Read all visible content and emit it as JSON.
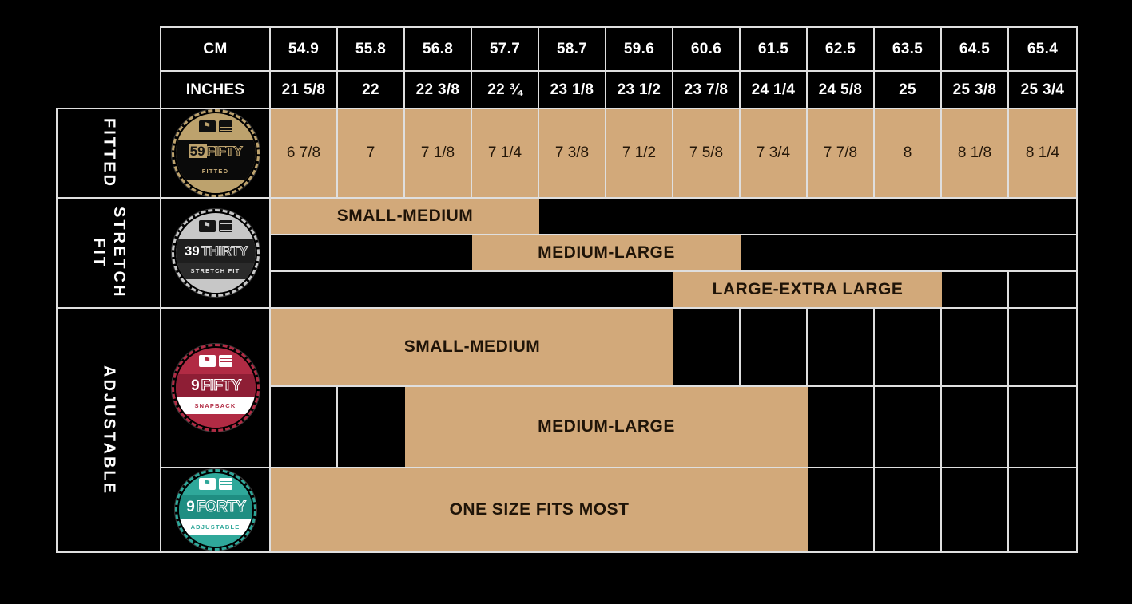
{
  "title": "New Era cap size chart",
  "colors": {
    "tan": "#d2a97a",
    "grid_line": "#dfdfdf",
    "background": "#000000",
    "badge_gold": "#bda26d",
    "badge_silver": "#c7c7c7",
    "badge_crimson": "#b12b44",
    "badge_teal": "#2fa89a"
  },
  "header": {
    "cm_label": "CM",
    "inches_label": "INCHES",
    "cm": [
      "54.9",
      "55.8",
      "56.8",
      "57.7",
      "58.7",
      "59.6",
      "60.6",
      "61.5",
      "62.5",
      "63.5",
      "64.5",
      "65.4"
    ],
    "inches": [
      "21 5/8",
      "22",
      "22 3/8",
      "22 ¾",
      "23 1/8",
      "23 1/2",
      "23 7/8",
      "24 1/4",
      "24 5/8",
      "25",
      "25 3/8",
      "25 3/4"
    ]
  },
  "sections": {
    "fitted": {
      "label": "FITTED",
      "badge": {
        "prefix": "59",
        "suffix": "FIFTY",
        "sub": "FITTED"
      },
      "sizes": [
        "6 7/8",
        "7",
        "7 1/8",
        "7 1/4",
        "7 3/8",
        "7 1/2",
        "7 5/8",
        "7 3/4",
        "7 7/8",
        "8",
        "8 1/8",
        "8 1/4"
      ]
    },
    "stretch": {
      "label": "STRETCH FIT",
      "badge": {
        "prefix": "39",
        "suffix": "THIRTY",
        "sub": "STRETCH FIT"
      },
      "bars": [
        {
          "label": "SMALL-MEDIUM",
          "start_col": 1,
          "end_col": 4
        },
        {
          "label": "MEDIUM-LARGE",
          "start_col": 4,
          "end_col": 7
        },
        {
          "label": "LARGE-EXTRA LARGE",
          "start_col": 7,
          "end_col": 10
        }
      ]
    },
    "adjustable": {
      "label": "ADJUSTABLE",
      "fifty": {
        "badge": {
          "prefix": "9",
          "suffix": "FIFTY",
          "sub": "SNAPBACK"
        },
        "bars": [
          {
            "label": "SMALL-MEDIUM",
            "start_col": 1,
            "end_col": 6
          },
          {
            "label": "MEDIUM-LARGE",
            "start_col": 3,
            "end_col": 8
          }
        ]
      },
      "forty": {
        "badge": {
          "prefix": "9",
          "suffix": "FORTY",
          "sub": "ADJUSTABLE"
        },
        "bars": [
          {
            "label": "ONE SIZE FITS MOST",
            "start_col": 1,
            "end_col": 8
          }
        ]
      }
    }
  },
  "chart_data": {
    "type": "table",
    "title": "New Era cap size chart",
    "columns_cm": [
      "54.9",
      "55.8",
      "56.8",
      "57.7",
      "58.7",
      "59.6",
      "60.6",
      "61.5",
      "62.5",
      "63.5",
      "64.5",
      "65.4"
    ],
    "columns_inches": [
      "21 5/8",
      "22",
      "22 3/8",
      "22 ¾",
      "23 1/8",
      "23 1/2",
      "23 7/8",
      "24 1/4",
      "24 5/8",
      "25",
      "25 3/8",
      "25 3/4"
    ],
    "series": [
      {
        "name": "59FIFTY",
        "section": "FITTED",
        "sizes": [
          "6 7/8",
          "7",
          "7 1/8",
          "7 1/4",
          "7 3/8",
          "7 1/2",
          "7 5/8",
          "7 3/4",
          "7 7/8",
          "8",
          "8 1/8",
          "8 1/4"
        ]
      },
      {
        "name": "39THIRTY",
        "section": "STRETCH FIT",
        "ranges": [
          {
            "label": "SMALL-MEDIUM",
            "cm_from": "54.9",
            "cm_to": "57.7"
          },
          {
            "label": "MEDIUM-LARGE",
            "cm_from": "57.7",
            "cm_to": "60.6"
          },
          {
            "label": "LARGE-EXTRA LARGE",
            "cm_from": "60.6",
            "cm_to": "63.5"
          }
        ]
      },
      {
        "name": "9FIFTY",
        "section": "ADJUSTABLE",
        "ranges": [
          {
            "label": "SMALL-MEDIUM",
            "cm_from": "54.9",
            "cm_to": "59.6"
          },
          {
            "label": "MEDIUM-LARGE",
            "cm_from": "56.8",
            "cm_to": "61.5"
          }
        ]
      },
      {
        "name": "9FORTY",
        "section": "ADJUSTABLE",
        "ranges": [
          {
            "label": "ONE SIZE FITS MOST",
            "cm_from": "54.9",
            "cm_to": "61.5"
          }
        ]
      }
    ],
    "legend_position": "left",
    "grid": true
  }
}
